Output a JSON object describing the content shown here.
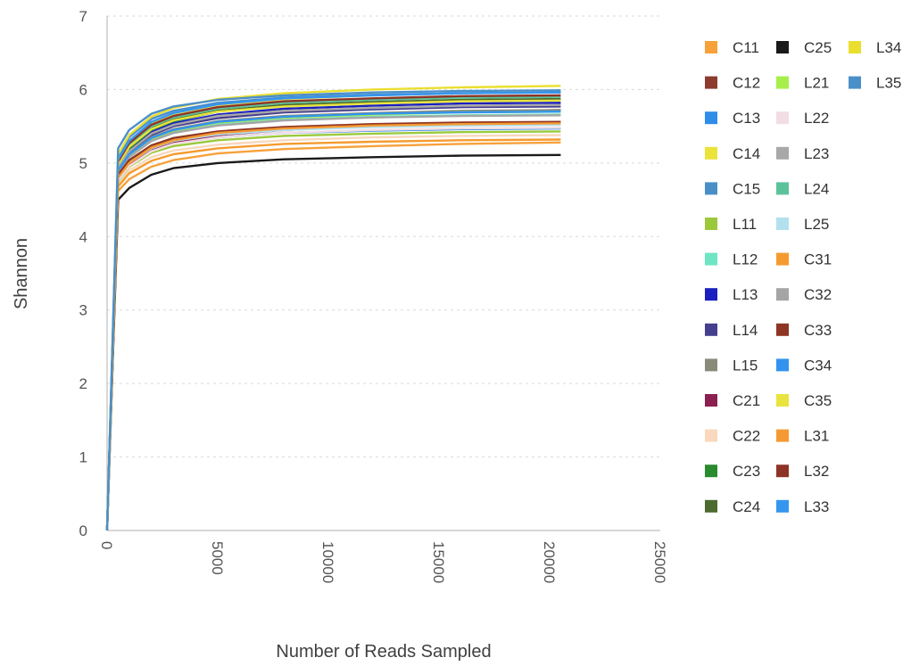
{
  "chart_data": {
    "type": "line",
    "title": "",
    "xlabel": "Number of Reads Sampled",
    "ylabel": "Shannon",
    "xlim": [
      0,
      25000
    ],
    "ylim": [
      0,
      7
    ],
    "x_ticks": [
      "0",
      "5000",
      "10000",
      "15000",
      "20000",
      "25000"
    ],
    "y_ticks": [
      "0",
      "1",
      "2",
      "3",
      "4",
      "5",
      "6",
      "7"
    ],
    "grid": "horizontal-dotted",
    "legend_position": "right",
    "x": [
      0,
      500,
      1000,
      2000,
      3000,
      5000,
      8000,
      12000,
      16000,
      20500
    ],
    "series": [
      {
        "name": "C11",
        "color": "#f7a13b",
        "values": [
          0,
          4.62,
          4.78,
          4.95,
          5.04,
          5.13,
          5.19,
          5.23,
          5.26,
          5.28
        ]
      },
      {
        "name": "C12",
        "color": "#8c3b2e",
        "values": [
          0,
          4.9,
          5.12,
          5.33,
          5.44,
          5.55,
          5.62,
          5.67,
          5.7,
          5.72
        ]
      },
      {
        "name": "C13",
        "color": "#2e8de8",
        "values": [
          0,
          4.8,
          5.0,
          5.18,
          5.27,
          5.35,
          5.41,
          5.44,
          5.46,
          5.47
        ]
      },
      {
        "name": "C14",
        "color": "#ebe33a",
        "values": [
          0,
          5.05,
          5.3,
          5.55,
          5.67,
          5.79,
          5.87,
          5.92,
          5.95,
          5.97
        ]
      },
      {
        "name": "C15",
        "color": "#4a8ec8",
        "values": [
          0,
          5.1,
          5.35,
          5.6,
          5.71,
          5.82,
          5.89,
          5.93,
          5.95,
          5.96
        ]
      },
      {
        "name": "L11",
        "color": "#9cc93b",
        "values": [
          0,
          4.75,
          4.95,
          5.14,
          5.23,
          5.31,
          5.37,
          5.4,
          5.42,
          5.43
        ]
      },
      {
        "name": "L12",
        "color": "#6ee6c4",
        "values": [
          0,
          4.85,
          5.08,
          5.3,
          5.41,
          5.52,
          5.59,
          5.63,
          5.65,
          5.66
        ]
      },
      {
        "name": "L13",
        "color": "#1a1fbf",
        "values": [
          0,
          4.95,
          5.18,
          5.42,
          5.54,
          5.66,
          5.74,
          5.78,
          5.81,
          5.82
        ]
      },
      {
        "name": "L14",
        "color": "#463f8e",
        "values": [
          0,
          4.92,
          5.15,
          5.38,
          5.5,
          5.61,
          5.69,
          5.73,
          5.76,
          5.77
        ]
      },
      {
        "name": "L15",
        "color": "#8a8a78",
        "values": [
          0,
          4.9,
          5.12,
          5.35,
          5.46,
          5.57,
          5.64,
          5.68,
          5.71,
          5.72
        ]
      },
      {
        "name": "C21",
        "color": "#8c2050",
        "values": [
          0,
          4.78,
          4.98,
          5.18,
          5.28,
          5.38,
          5.45,
          5.5,
          5.53,
          5.55
        ]
      },
      {
        "name": "C22",
        "color": "#f9d8bd",
        "values": [
          0,
          4.7,
          4.9,
          5.08,
          5.17,
          5.25,
          5.31,
          5.35,
          5.37,
          5.38
        ]
      },
      {
        "name": "C23",
        "color": "#2a8a2e",
        "values": [
          0,
          4.95,
          5.2,
          5.45,
          5.57,
          5.7,
          5.78,
          5.82,
          5.85,
          5.86
        ]
      },
      {
        "name": "C24",
        "color": "#4d6b2e",
        "values": [
          0,
          4.98,
          5.22,
          5.47,
          5.59,
          5.71,
          5.79,
          5.83,
          5.86,
          5.87
        ]
      },
      {
        "name": "C25",
        "color": "#1a1a1a",
        "values": [
          0,
          4.5,
          4.66,
          4.84,
          4.93,
          5.0,
          5.05,
          5.08,
          5.1,
          5.11
        ]
      },
      {
        "name": "L21",
        "color": "#a6ef4a",
        "values": [
          0,
          4.88,
          5.1,
          5.33,
          5.44,
          5.55,
          5.62,
          5.66,
          5.69,
          5.7
        ]
      },
      {
        "name": "L22",
        "color": "#f2dde4",
        "values": [
          0,
          4.76,
          4.96,
          5.16,
          5.26,
          5.35,
          5.41,
          5.45,
          5.47,
          5.48
        ]
      },
      {
        "name": "L23",
        "color": "#a8a8a8",
        "values": [
          0,
          4.93,
          5.16,
          5.4,
          5.52,
          5.64,
          5.71,
          5.75,
          5.78,
          5.79
        ]
      },
      {
        "name": "L24",
        "color": "#5cc29a",
        "values": [
          0,
          5.0,
          5.24,
          5.5,
          5.62,
          5.74,
          5.82,
          5.86,
          5.89,
          5.9
        ]
      },
      {
        "name": "L25",
        "color": "#b2e0ee",
        "values": [
          0,
          4.8,
          5.0,
          5.2,
          5.3,
          5.39,
          5.45,
          5.49,
          5.51,
          5.52
        ]
      },
      {
        "name": "C31",
        "color": "#f59b2e",
        "values": [
          0,
          4.68,
          4.86,
          5.03,
          5.12,
          5.2,
          5.26,
          5.29,
          5.31,
          5.32
        ]
      },
      {
        "name": "C32",
        "color": "#a5a5a5",
        "values": [
          0,
          4.86,
          5.08,
          5.3,
          5.41,
          5.51,
          5.58,
          5.62,
          5.64,
          5.65
        ]
      },
      {
        "name": "C33",
        "color": "#8e3524",
        "values": [
          0,
          4.84,
          5.04,
          5.24,
          5.34,
          5.43,
          5.49,
          5.53,
          5.55,
          5.56
        ]
      },
      {
        "name": "C34",
        "color": "#3293ef",
        "values": [
          0,
          4.9,
          5.12,
          5.34,
          5.45,
          5.56,
          5.63,
          5.67,
          5.69,
          5.7
        ]
      },
      {
        "name": "C35",
        "color": "#e9e33e",
        "values": [
          0,
          4.98,
          5.22,
          5.46,
          5.58,
          5.7,
          5.77,
          5.81,
          5.84,
          5.85
        ]
      },
      {
        "name": "L31",
        "color": "#f59a32",
        "values": [
          0,
          4.8,
          5.0,
          5.21,
          5.31,
          5.41,
          5.47,
          5.51,
          5.53,
          5.54
        ]
      },
      {
        "name": "L32",
        "color": "#8d3427",
        "values": [
          0,
          5.02,
          5.27,
          5.52,
          5.64,
          5.76,
          5.84,
          5.88,
          5.91,
          5.92
        ]
      },
      {
        "name": "L33",
        "color": "#3596f0",
        "values": [
          0,
          5.05,
          5.3,
          5.56,
          5.68,
          5.8,
          5.88,
          5.92,
          5.95,
          5.96
        ]
      },
      {
        "name": "L34",
        "color": "#eadf2f",
        "values": [
          0,
          5.12,
          5.38,
          5.63,
          5.75,
          5.87,
          5.95,
          6.0,
          6.03,
          6.05
        ]
      },
      {
        "name": "L35",
        "color": "#4b8fc9",
        "values": [
          0,
          5.2,
          5.45,
          5.67,
          5.77,
          5.86,
          5.92,
          5.96,
          5.98,
          5.99
        ]
      }
    ]
  }
}
